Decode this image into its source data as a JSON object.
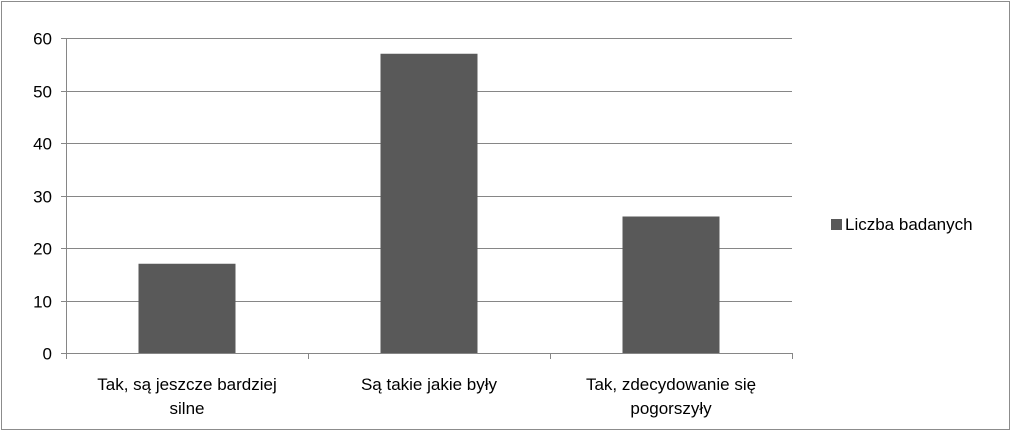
{
  "chart_data": {
    "type": "bar",
    "categories": [
      "Tak, są jeszcze bardziej silne",
      "Są takie jakie były",
      "Tak, zdecydowanie się pogorszyły"
    ],
    "category_label_lines": [
      [
        "Tak, są jeszcze bardziej",
        "silne"
      ],
      [
        "Są takie jakie były"
      ],
      [
        "Tak, zdecydowanie się",
        "pogorszyły"
      ]
    ],
    "series": [
      {
        "name": "Liczba badanych",
        "values": [
          17,
          57,
          26
        ],
        "color": "#595959"
      }
    ],
    "title": "",
    "xlabel": "",
    "ylabel": "",
    "ylim": [
      0,
      60
    ],
    "yticks": [
      0,
      10,
      20,
      30,
      40,
      50,
      60
    ],
    "grid": true,
    "gridline_color": "#868686",
    "legend_position": "right"
  }
}
